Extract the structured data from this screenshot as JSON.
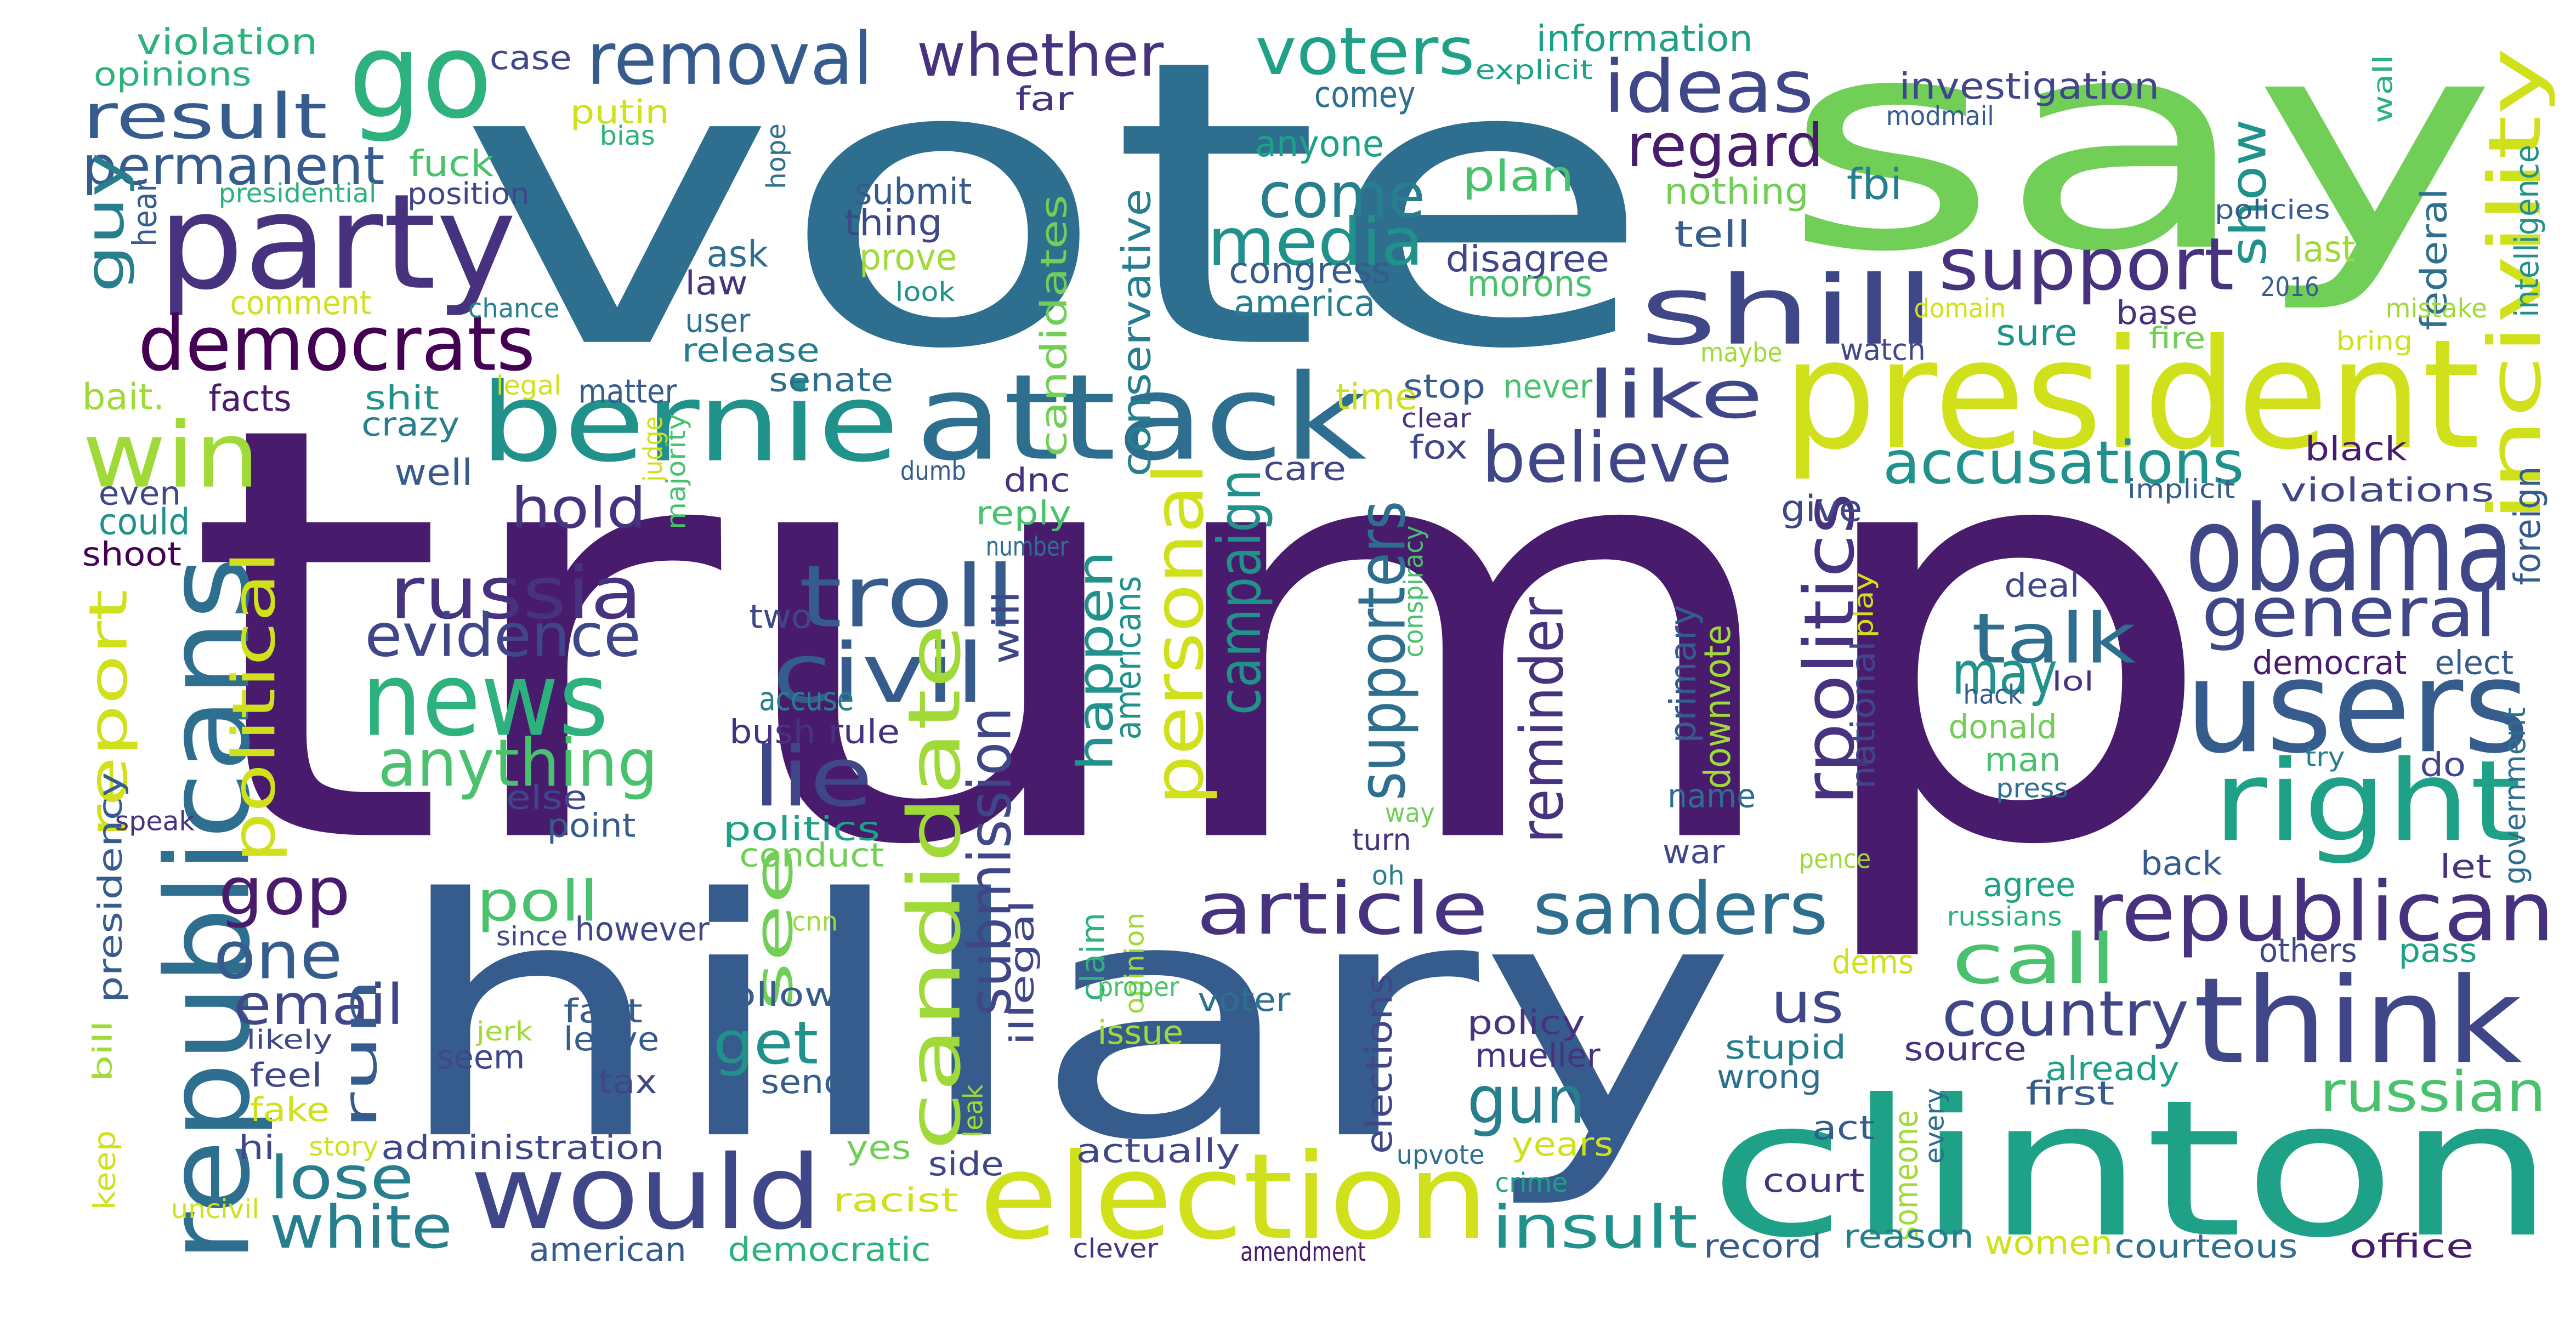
{
  "cloud": {
    "palette": [
      "#440154",
      "#481b6d",
      "#46327e",
      "#3f4788",
      "#365c8d",
      "#2e6e8e",
      "#277f8e",
      "#21918c",
      "#1fa187",
      "#2db27d",
      "#4ac16d",
      "#71cf57",
      "#a0da39",
      "#d0e11c",
      "#fde725"
    ],
    "words": [
      {
        "text": "trump",
        "c": 1
      },
      {
        "text": "vote",
        "c": 5
      },
      {
        "text": "say",
        "c": 11
      },
      {
        "text": "hillary",
        "c": 4
      },
      {
        "text": "clinton",
        "c": 8
      },
      {
        "text": "president",
        "c": 13
      },
      {
        "text": "attack",
        "c": 5
      },
      {
        "text": "bernie",
        "c": 7
      },
      {
        "text": "party",
        "c": 2
      },
      {
        "text": "go",
        "c": 9
      },
      {
        "text": "election",
        "c": 13
      },
      {
        "text": "republicans",
        "c": 5
      },
      {
        "text": "users",
        "c": 4
      },
      {
        "text": "think",
        "c": 3
      },
      {
        "text": "obama",
        "c": 3
      },
      {
        "text": "right",
        "c": 8
      },
      {
        "text": "republican",
        "c": 2
      },
      {
        "text": "news",
        "c": 9
      },
      {
        "text": "would",
        "c": 3
      },
      {
        "text": "shill",
        "c": 3
      },
      {
        "text": "win",
        "c": 12
      },
      {
        "text": "democrats",
        "c": 0
      },
      {
        "text": "incivility",
        "c": 13
      },
      {
        "text": "troll",
        "c": 4
      },
      {
        "text": "civil",
        "c": 4
      },
      {
        "text": "candidate",
        "c": 12
      },
      {
        "text": "article",
        "c": 2
      },
      {
        "text": "sanders",
        "c": 5
      },
      {
        "text": "general",
        "c": 3
      },
      {
        "text": "support",
        "c": 2
      },
      {
        "text": "ideas",
        "c": 3
      },
      {
        "text": "believe",
        "c": 3
      },
      {
        "text": "removal",
        "c": 4
      },
      {
        "text": "personal",
        "c": 13
      },
      {
        "text": "russia",
        "c": 2
      },
      {
        "text": "media",
        "c": 7
      },
      {
        "text": "supporters",
        "c": 5
      },
      {
        "text": "anything",
        "c": 10
      },
      {
        "text": "lie",
        "c": 3
      },
      {
        "text": "rpolitics",
        "c": 2
      },
      {
        "text": "talk",
        "c": 5
      },
      {
        "text": "voters",
        "c": 8
      },
      {
        "text": "evidence",
        "c": 3
      },
      {
        "text": "result",
        "c": 4
      },
      {
        "text": "whether",
        "c": 2
      },
      {
        "text": "gop",
        "c": 1
      },
      {
        "text": "accusations",
        "c": 7
      },
      {
        "text": "call",
        "c": 10
      },
      {
        "text": "like",
        "c": 3
      },
      {
        "text": "come",
        "c": 6
      },
      {
        "text": "one",
        "c": 4
      },
      {
        "text": "insult",
        "c": 7
      },
      {
        "text": "gun",
        "c": 6
      },
      {
        "text": "white",
        "c": 6
      },
      {
        "text": "country",
        "c": 3
      },
      {
        "text": "political",
        "c": 13
      },
      {
        "text": "permanent",
        "c": 4
      },
      {
        "text": "regard",
        "c": 1
      },
      {
        "text": "submission",
        "c": 3
      },
      {
        "text": "reminder",
        "c": 2
      },
      {
        "text": "campaign",
        "c": 7
      },
      {
        "text": "report",
        "c": 13
      },
      {
        "text": "lose",
        "c": 6
      },
      {
        "text": "poll",
        "c": 10
      },
      {
        "text": "email",
        "c": 3
      },
      {
        "text": "hold",
        "c": 2
      },
      {
        "text": "see",
        "c": 11
      },
      {
        "text": "get",
        "c": 7
      },
      {
        "text": "russian",
        "c": 10
      },
      {
        "text": "may",
        "c": 7
      },
      {
        "text": "us",
        "c": 3
      },
      {
        "text": "happen",
        "c": 7
      },
      {
        "text": "show",
        "c": 7
      },
      {
        "text": "guy",
        "c": 6
      },
      {
        "text": "run",
        "c": 4
      },
      {
        "text": "accuse",
        "c": 6
      },
      {
        "text": "conservative",
        "c": 6
      },
      {
        "text": "fbi",
        "c": 6
      },
      {
        "text": "investigation",
        "c": 3
      },
      {
        "text": "plan",
        "c": 10
      },
      {
        "text": "america",
        "c": 6
      },
      {
        "text": "congress",
        "c": 4
      },
      {
        "text": "disagree",
        "c": 3
      },
      {
        "text": "morons",
        "c": 10
      },
      {
        "text": "information",
        "c": 8
      },
      {
        "text": "violation",
        "c": 9
      },
      {
        "text": "opinions",
        "c": 9
      },
      {
        "text": "case",
        "c": 3
      },
      {
        "text": "far",
        "c": 2
      },
      {
        "text": "comey",
        "c": 5
      },
      {
        "text": "putin",
        "c": 13
      },
      {
        "text": "fuck",
        "c": 10
      },
      {
        "text": "anyone",
        "c": 8
      },
      {
        "text": "submit",
        "c": 4
      },
      {
        "text": "prove",
        "c": 12
      },
      {
        "text": "thing",
        "c": 3
      },
      {
        "text": "candidates",
        "c": 11
      },
      {
        "text": "nothing",
        "c": 11
      },
      {
        "text": "tell",
        "c": 4
      },
      {
        "text": "explicit",
        "c": 8
      },
      {
        "text": "modmail",
        "c": 4
      },
      {
        "text": "policies",
        "c": 4
      },
      {
        "text": "last",
        "c": 12
      },
      {
        "text": "base",
        "c": 2
      },
      {
        "text": "federal",
        "c": 5
      },
      {
        "text": "intelligence",
        "c": 7
      },
      {
        "text": "wall",
        "c": 9
      },
      {
        "text": "mistake",
        "c": 12
      },
      {
        "text": "2016",
        "c": 4
      },
      {
        "text": "fire",
        "c": 11
      },
      {
        "text": "bring",
        "c": 13
      },
      {
        "text": "watch",
        "c": 3
      },
      {
        "text": "sure",
        "c": 7
      },
      {
        "text": "maybe",
        "c": 12
      },
      {
        "text": "domain",
        "c": 13
      },
      {
        "text": "presidential",
        "c": 9
      },
      {
        "text": "position",
        "c": 3
      },
      {
        "text": "bias",
        "c": 9
      },
      {
        "text": "hope",
        "c": 5
      },
      {
        "text": "hear",
        "c": 4
      },
      {
        "text": "ask",
        "c": 5
      },
      {
        "text": "law",
        "c": 2
      },
      {
        "text": "user",
        "c": 5
      },
      {
        "text": "comment",
        "c": 13
      },
      {
        "text": "chance",
        "c": 6
      },
      {
        "text": "look",
        "c": 7
      },
      {
        "text": "release",
        "c": 6
      },
      {
        "text": "facts",
        "c": 1
      },
      {
        "text": "bait.",
        "c": 12
      },
      {
        "text": "shit",
        "c": 7
      },
      {
        "text": "legal",
        "c": 13
      },
      {
        "text": "senate",
        "c": 5
      },
      {
        "text": "time",
        "c": 13
      },
      {
        "text": "stop",
        "c": 4
      },
      {
        "text": "never",
        "c": 10
      },
      {
        "text": "clear",
        "c": 2
      },
      {
        "text": "fox",
        "c": 3
      },
      {
        "text": "crazy",
        "c": 6
      },
      {
        "text": "matter",
        "c": 4
      },
      {
        "text": "judge",
        "c": 13
      },
      {
        "text": "majority",
        "c": 10
      },
      {
        "text": "well",
        "c": 4
      },
      {
        "text": "even",
        "c": 3
      },
      {
        "text": "could",
        "c": 7
      },
      {
        "text": "shoot",
        "c": 0
      },
      {
        "text": "dumb",
        "c": 4
      },
      {
        "text": "dnc",
        "c": 2
      },
      {
        "text": "reply",
        "c": 10
      },
      {
        "text": "number",
        "c": 5
      },
      {
        "text": "care",
        "c": 3
      },
      {
        "text": "give",
        "c": 3
      },
      {
        "text": "black",
        "c": 1
      },
      {
        "text": "violations",
        "c": 3
      },
      {
        "text": "implicit",
        "c": 4
      },
      {
        "text": "foreign",
        "c": 4
      },
      {
        "text": "deal",
        "c": 3
      },
      {
        "text": "democrat",
        "c": 1
      },
      {
        "text": "elect",
        "c": 4
      },
      {
        "text": "two",
        "c": 3
      },
      {
        "text": "will",
        "c": 3
      },
      {
        "text": "americans",
        "c": 7
      },
      {
        "text": "conspiracy",
        "c": 10
      },
      {
        "text": "play",
        "c": 13
      },
      {
        "text": "primary",
        "c": 4
      },
      {
        "text": "downvote",
        "c": 12
      },
      {
        "text": "national",
        "c": 3
      },
      {
        "text": "hack",
        "c": 4
      },
      {
        "text": "lol",
        "c": 2
      },
      {
        "text": "donald",
        "c": 11
      },
      {
        "text": "man",
        "c": 10
      },
      {
        "text": "press",
        "c": 5
      },
      {
        "text": "do",
        "c": 3
      },
      {
        "text": "try",
        "c": 6
      },
      {
        "text": "government",
        "c": 5
      },
      {
        "text": "bush",
        "c": 2
      },
      {
        "text": "rule",
        "c": 2
      },
      {
        "text": "else",
        "c": 3
      },
      {
        "text": "speak",
        "c": 2
      },
      {
        "text": "presidency",
        "c": 4
      },
      {
        "text": "point",
        "c": 4
      },
      {
        "text": "politics",
        "c": 8
      },
      {
        "text": "conduct",
        "c": 11
      },
      {
        "text": "name",
        "c": 5
      },
      {
        "text": "war",
        "c": 3
      },
      {
        "text": "way",
        "c": 11
      },
      {
        "text": "turn",
        "c": 2
      },
      {
        "text": "oh",
        "c": 6
      },
      {
        "text": "pence",
        "c": 12
      },
      {
        "text": "back",
        "c": 4
      },
      {
        "text": "let",
        "c": 2
      },
      {
        "text": "agree",
        "c": 8
      },
      {
        "text": "dems",
        "c": 13
      },
      {
        "text": "cnn",
        "c": 12
      },
      {
        "text": "since",
        "c": 3
      },
      {
        "text": "however",
        "c": 3
      },
      {
        "text": "follow",
        "c": 4
      },
      {
        "text": "illegal",
        "c": 3
      },
      {
        "text": "claim",
        "c": 9
      },
      {
        "text": "opinion",
        "c": 12
      },
      {
        "text": "proper",
        "c": 10
      },
      {
        "text": "issue",
        "c": 12
      },
      {
        "text": "voter",
        "c": 5
      },
      {
        "text": "russians",
        "c": 9
      },
      {
        "text": "others",
        "c": 3
      },
      {
        "text": "pass",
        "c": 8
      },
      {
        "text": "bill",
        "c": 12
      },
      {
        "text": "jerk",
        "c": 12
      },
      {
        "text": "likely",
        "c": 3
      },
      {
        "text": "fact",
        "c": 4
      },
      {
        "text": "leave",
        "c": 4
      },
      {
        "text": "seem",
        "c": 3
      },
      {
        "text": "policy",
        "c": 2
      },
      {
        "text": "mueller",
        "c": 2
      },
      {
        "text": "source",
        "c": 2
      },
      {
        "text": "stupid",
        "c": 6
      },
      {
        "text": "already",
        "c": 8
      },
      {
        "text": "feel",
        "c": 3
      },
      {
        "text": "tax",
        "c": 3
      },
      {
        "text": "send",
        "c": 4
      },
      {
        "text": "wrong",
        "c": 5
      },
      {
        "text": "first",
        "c": 4
      },
      {
        "text": "keep",
        "c": 13
      },
      {
        "text": "fake",
        "c": 13
      },
      {
        "text": "hi",
        "c": 3
      },
      {
        "text": "leak",
        "c": 12
      },
      {
        "text": "every",
        "c": 5
      },
      {
        "text": "administration",
        "c": 3
      },
      {
        "text": "yes",
        "c": 11
      },
      {
        "text": "elections",
        "c": 3
      },
      {
        "text": "act",
        "c": 4
      },
      {
        "text": "years",
        "c": 13
      },
      {
        "text": "someone",
        "c": 12
      },
      {
        "text": "story",
        "c": 13
      },
      {
        "text": "actually",
        "c": 3
      },
      {
        "text": "upvote",
        "c": 5
      },
      {
        "text": "side",
        "c": 3
      },
      {
        "text": "crime",
        "c": 8
      },
      {
        "text": "court",
        "c": 2
      },
      {
        "text": "uncivil",
        "c": 13
      },
      {
        "text": "racist",
        "c": 13
      },
      {
        "text": "reason",
        "c": 6
      },
      {
        "text": "american",
        "c": 4
      },
      {
        "text": "democratic",
        "c": 9
      },
      {
        "text": "record",
        "c": 4
      },
      {
        "text": "women",
        "c": 13
      },
      {
        "text": "courteous",
        "c": 5
      },
      {
        "text": "office",
        "c": 1
      },
      {
        "text": "clever",
        "c": 2
      },
      {
        "text": "amendment",
        "c": 1
      }
    ]
  }
}
